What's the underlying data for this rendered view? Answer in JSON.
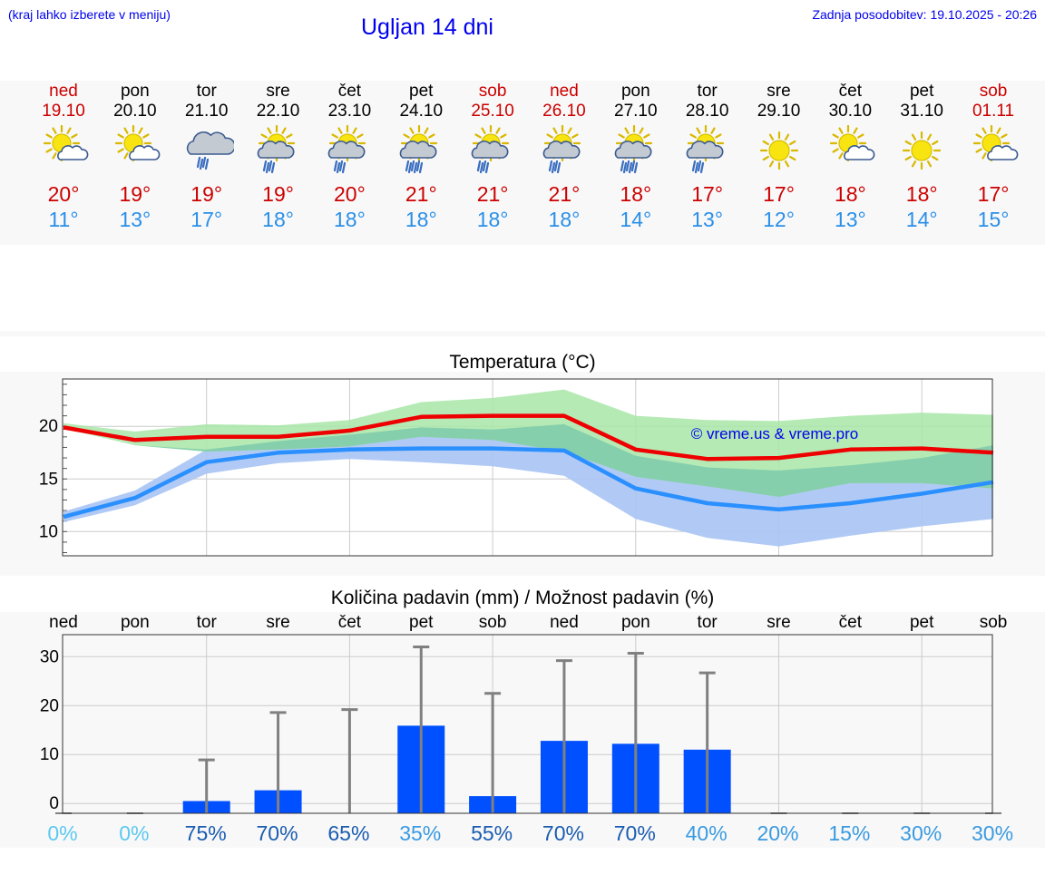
{
  "header": {
    "hint": "(kraj lahko izberete v meniju)",
    "title": "Ugljan 14 dni",
    "updated": "Zadnja posodobitev: 19.10.2025 - 20:26"
  },
  "days": [
    {
      "name": "ned",
      "date": "19.10",
      "weekend": true,
      "icon": "sun-cloud-icon",
      "tmax": "20°",
      "tmin": "11°"
    },
    {
      "name": "pon",
      "date": "20.10",
      "weekend": false,
      "icon": "sun-cloud-icon",
      "tmax": "19°",
      "tmin": "13°"
    },
    {
      "name": "tor",
      "date": "21.10",
      "weekend": false,
      "icon": "cloud-rain-icon",
      "tmax": "19°",
      "tmin": "17°"
    },
    {
      "name": "sre",
      "date": "22.10",
      "weekend": false,
      "icon": "sun-cloud-rain-icon",
      "tmax": "19°",
      "tmin": "18°"
    },
    {
      "name": "čet",
      "date": "23.10",
      "weekend": false,
      "icon": "sun-cloud-rain-icon",
      "tmax": "20°",
      "tmin": "18°"
    },
    {
      "name": "pet",
      "date": "24.10",
      "weekend": false,
      "icon": "sun-cloud-heavy-rain-icon",
      "tmax": "21°",
      "tmin": "18°"
    },
    {
      "name": "sob",
      "date": "25.10",
      "weekend": true,
      "icon": "sun-cloud-rain-icon",
      "tmax": "21°",
      "tmin": "18°"
    },
    {
      "name": "ned",
      "date": "26.10",
      "weekend": true,
      "icon": "sun-cloud-rain-icon",
      "tmax": "21°",
      "tmin": "18°"
    },
    {
      "name": "pon",
      "date": "27.10",
      "weekend": false,
      "icon": "sun-cloud-heavy-rain-icon",
      "tmax": "18°",
      "tmin": "14°"
    },
    {
      "name": "tor",
      "date": "28.10",
      "weekend": false,
      "icon": "sun-cloud-rain-icon",
      "tmax": "17°",
      "tmin": "13°"
    },
    {
      "name": "sre",
      "date": "29.10",
      "weekend": false,
      "icon": "sun-icon",
      "tmax": "17°",
      "tmin": "12°"
    },
    {
      "name": "čet",
      "date": "30.10",
      "weekend": false,
      "icon": "sun-cloud-icon",
      "tmax": "18°",
      "tmin": "13°"
    },
    {
      "name": "pet",
      "date": "31.10",
      "weekend": false,
      "icon": "sun-icon",
      "tmax": "18°",
      "tmin": "14°"
    },
    {
      "name": "sob",
      "date": "01.11",
      "weekend": true,
      "icon": "sun-cloud-icon",
      "tmax": "17°",
      "tmin": "15°"
    }
  ],
  "colors": {
    "max_line": "#ee0000",
    "min_line": "#2a8fff",
    "max_band": "#a8e6a8",
    "min_band": "#a8c4f4",
    "overlap_band": "#78c8a8",
    "bar": "#0050ff",
    "whisker": "#808080",
    "pct_light": "#5cc8f0",
    "pct_mid": "#3a9ae0",
    "pct_dark": "#1a5cb0"
  },
  "chart_data": [
    {
      "type": "line",
      "title": "Temperatura (°C)",
      "watermark": "© vreme.us & vreme.pro",
      "x": [
        "19.10",
        "20.10",
        "21.10",
        "22.10",
        "23.10",
        "24.10",
        "25.10",
        "26.10",
        "27.10",
        "28.10",
        "29.10",
        "30.10",
        "31.10",
        "01.11"
      ],
      "ylim": [
        7.7,
        24.5
      ],
      "yticks": [
        10,
        15,
        20
      ],
      "grid": true,
      "series": [
        {
          "values": [
            19.9,
            18.7,
            19.0,
            19.0,
            19.6,
            20.9,
            21.0,
            21.0,
            17.8,
            16.9,
            17.0,
            17.8,
            17.9,
            17.5
          ],
          "band_low": [
            19.8,
            18.2,
            17.6,
            17.8,
            18.1,
            19.0,
            18.7,
            17.6,
            15.2,
            14.3,
            13.3,
            14.6,
            14.6,
            14.1
          ],
          "band_high": [
            20.3,
            19.5,
            20.2,
            20.1,
            20.6,
            22.3,
            22.7,
            23.5,
            21.0,
            20.6,
            20.5,
            21.0,
            21.3,
            21.1
          ]
        },
        {
          "values": [
            11.4,
            13.2,
            16.6,
            17.5,
            17.8,
            17.9,
            17.9,
            17.7,
            14.1,
            12.7,
            12.1,
            12.7,
            13.6,
            14.7
          ],
          "band_low": [
            10.9,
            12.5,
            15.5,
            16.5,
            16.9,
            16.6,
            16.2,
            15.3,
            11.2,
            9.4,
            8.6,
            9.6,
            10.5,
            11.2
          ],
          "band_high": [
            11.9,
            13.9,
            17.8,
            18.6,
            19.2,
            19.9,
            19.7,
            20.2,
            17.2,
            16.1,
            15.8,
            16.3,
            17.0,
            18.2
          ]
        }
      ]
    },
    {
      "type": "bar",
      "title": "Količina padavin (mm) / Možnost padavin (%)",
      "categories": [
        "ned",
        "pon",
        "tor",
        "sre",
        "čet",
        "pet",
        "sob",
        "ned",
        "pon",
        "tor",
        "sre",
        "čet",
        "pet",
        "sob"
      ],
      "values": [
        0,
        0,
        0.5,
        2.7,
        0,
        15.9,
        1.5,
        12.8,
        12.2,
        11.0,
        0,
        0,
        0,
        0
      ],
      "error_high": [
        0,
        0,
        8.9,
        18.6,
        19.2,
        32.0,
        22.5,
        29.2,
        30.7,
        26.7,
        0,
        0,
        0,
        0
      ],
      "probability": [
        "0%",
        "0%",
        "75%",
        "70%",
        "65%",
        "35%",
        "55%",
        "70%",
        "70%",
        "40%",
        "20%",
        "15%",
        "30%",
        "30%"
      ],
      "probability_tone": [
        "light",
        "light",
        "dark",
        "dark",
        "dark",
        "mid",
        "dark",
        "dark",
        "dark",
        "mid",
        "mid",
        "mid",
        "mid",
        "mid"
      ],
      "ylim": [
        -2,
        34.5
      ],
      "yticks": [
        0,
        10,
        20,
        30
      ],
      "grid": true
    }
  ]
}
